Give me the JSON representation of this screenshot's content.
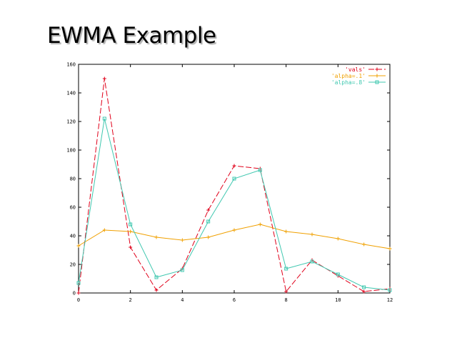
{
  "slide": {
    "title": "EWMA Example"
  },
  "chart_data": {
    "type": "line",
    "title": "",
    "xlabel": "",
    "ylabel": "",
    "xlim": [
      0,
      12
    ],
    "ylim": [
      0,
      160
    ],
    "xticks": [
      0,
      2,
      4,
      6,
      8,
      10,
      12
    ],
    "yticks": [
      0,
      20,
      40,
      60,
      80,
      100,
      120,
      140,
      160
    ],
    "grid": false,
    "legend_position": "top-right",
    "series": [
      {
        "name": "'vals'",
        "color": "#e0001a",
        "dash": "dashed",
        "marker": "plus",
        "x": [
          0,
          1,
          2,
          3,
          4,
          5,
          6,
          7,
          8,
          9,
          10,
          11,
          12
        ],
        "y": [
          0,
          150,
          32,
          2,
          17,
          58,
          89,
          87,
          1,
          23,
          12,
          1,
          3
        ]
      },
      {
        "name": "'alpha=.1'",
        "color": "#f0a000",
        "dash": "solid",
        "marker": "plus",
        "x": [
          0,
          1,
          2,
          3,
          4,
          5,
          6,
          7,
          8,
          9,
          10,
          11,
          12
        ],
        "y": [
          33,
          44,
          43,
          39,
          37,
          39,
          44,
          48,
          43,
          41,
          38,
          34,
          31
        ]
      },
      {
        "name": "'alpha=.8'",
        "color": "#40c8b0",
        "dash": "solid",
        "marker": "square",
        "x": [
          0,
          1,
          2,
          3,
          4,
          5,
          6,
          7,
          8,
          9,
          10,
          11,
          12
        ],
        "y": [
          7,
          122,
          48,
          11,
          16,
          50,
          80,
          86,
          17,
          22,
          13,
          4,
          2
        ]
      }
    ]
  }
}
